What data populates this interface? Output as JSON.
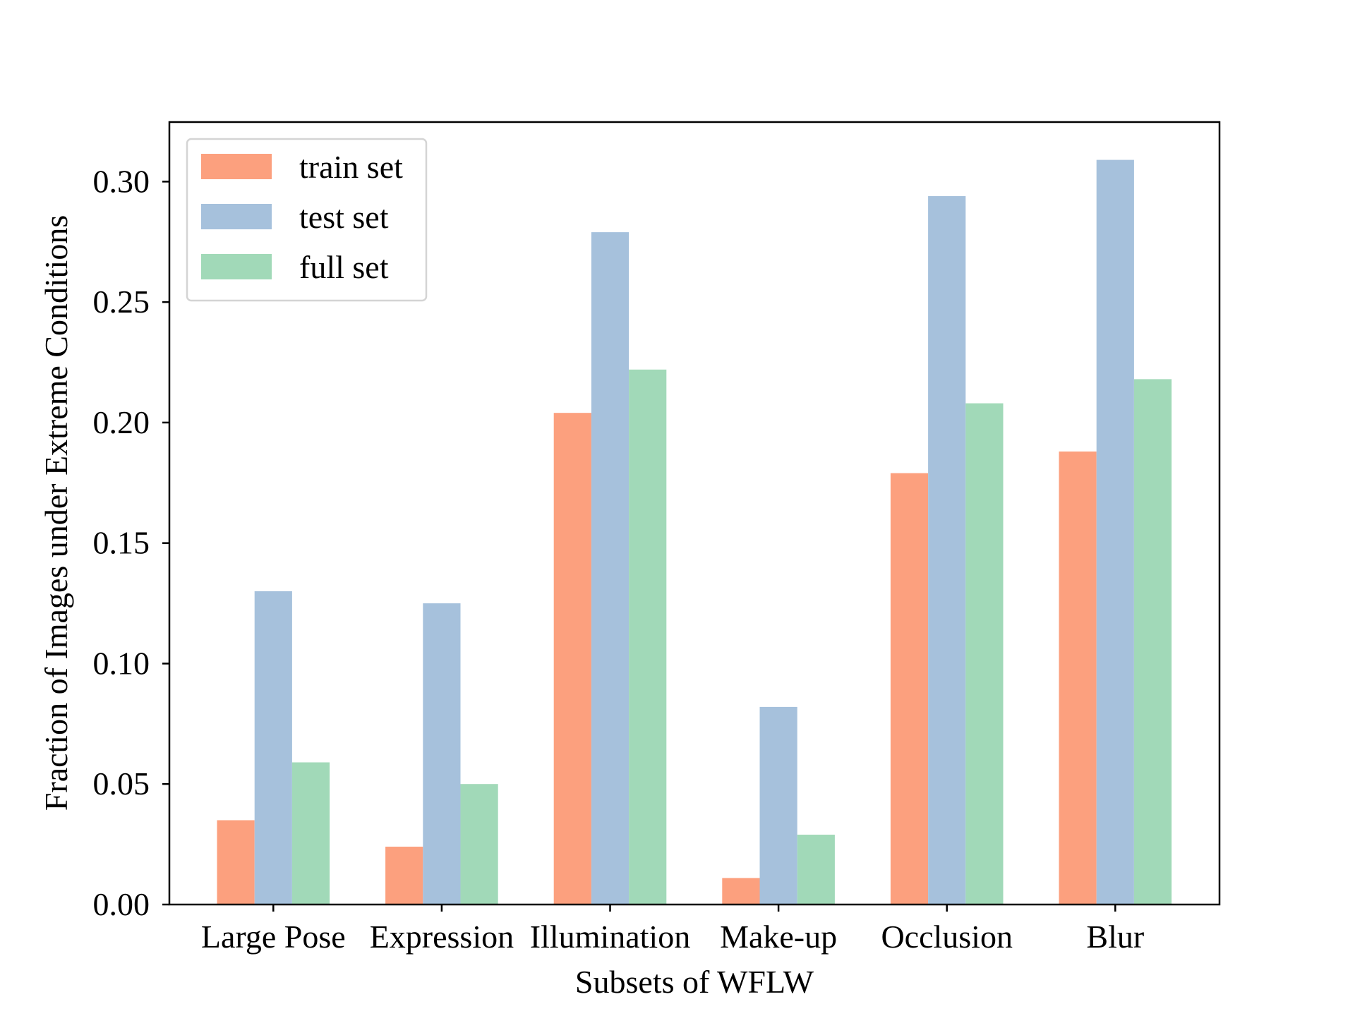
{
  "chart_data": {
    "type": "bar",
    "title": "",
    "xlabel": "Subsets of WFLW",
    "ylabel": "Fraction of Images under Extreme Conditions",
    "categories": [
      "Large Pose",
      "Expression",
      "Illumination",
      "Make-up",
      "Occlusion",
      "Blur"
    ],
    "series": [
      {
        "name": "train set",
        "color": "#FCA07E",
        "values": [
          0.035,
          0.024,
          0.204,
          0.011,
          0.179,
          0.188
        ]
      },
      {
        "name": "test set",
        "color": "#A6C1DC",
        "values": [
          0.13,
          0.125,
          0.279,
          0.082,
          0.294,
          0.309
        ]
      },
      {
        "name": "full set",
        "color": "#A1D9B8",
        "values": [
          0.059,
          0.05,
          0.222,
          0.029,
          0.208,
          0.218
        ]
      }
    ],
    "ylim": [
      0,
      0.3247
    ],
    "yticks": [
      "0.00",
      "0.05",
      "0.10",
      "0.15",
      "0.20",
      "0.25",
      "0.30"
    ],
    "grid": false,
    "legend_position": "top-left"
  }
}
